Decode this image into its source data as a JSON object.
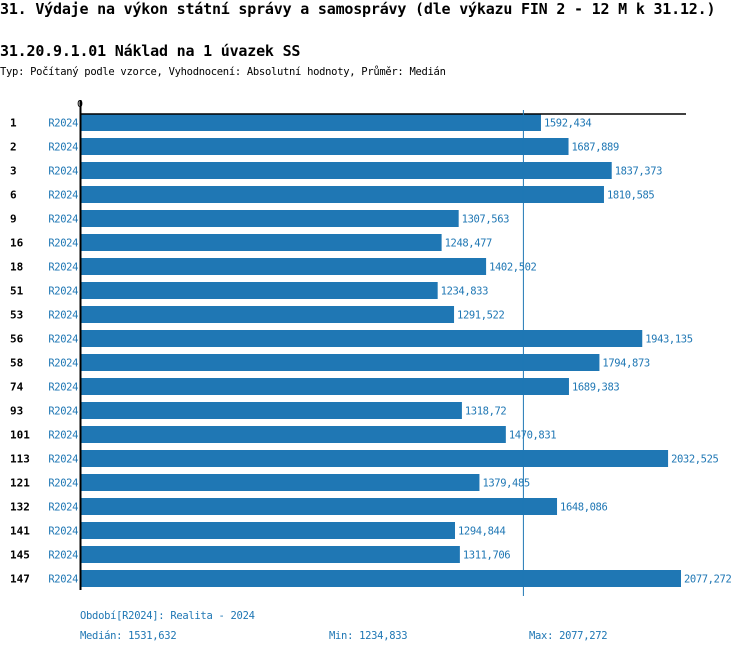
{
  "header": {
    "title": "31. Výdaje na výkon státní správy a samosprávy (dle výkazu FIN 2 - 12 M k 31.12.)",
    "subtitle": "31.20.9.1.01 Náklad na 1 úvazek SS",
    "type_line": "Typ: Počítaný podle vzorce, Vyhodnocení: Absolutní hodnoty, Průměr: Medián"
  },
  "colors": {
    "bar": "#1f77b4",
    "axis": "#000000",
    "text": "#000000",
    "accent_text": "#1f77b4"
  },
  "chart_data": {
    "type": "bar",
    "orientation": "horizontal",
    "title": "31.20.9.1.01 Náklad na 1 úvazek SS",
    "x_tick_labels": [
      "0"
    ],
    "xlim": [
      0,
      2077.272
    ],
    "series_label": "R2024",
    "categories": [
      "1",
      "2",
      "3",
      "6",
      "9",
      "16",
      "18",
      "51",
      "53",
      "56",
      "58",
      "74",
      "93",
      "101",
      "113",
      "121",
      "132",
      "141",
      "145",
      "147"
    ],
    "values": [
      1592.434,
      1687.889,
      1837.373,
      1810.585,
      1307.563,
      1248.477,
      1402.502,
      1234.833,
      1291.522,
      1943.135,
      1794.873,
      1689.383,
      1318.72,
      1470.831,
      2032.525,
      1379.485,
      1648.086,
      1294.844,
      1311.706,
      2077.272
    ],
    "value_labels": [
      "1592,434",
      "1687,889",
      "1837,373",
      "1810,585",
      "1307,563",
      "1248,477",
      "1402,502",
      "1234,833",
      "1291,522",
      "1943,135",
      "1794,873",
      "1689,383",
      "1318,72",
      "1470,831",
      "2032,525",
      "1379,485",
      "1648,086",
      "1294,844",
      "1311,706",
      "2077,272"
    ],
    "median": 1531.632,
    "reference_line": "median",
    "grid": false,
    "legend": "none"
  },
  "footer": {
    "period": "Období[R2024]: Realita - 2024",
    "median": "Medián: 1531,632",
    "min": "Min: 1234,833",
    "max": "Max: 2077,272"
  }
}
